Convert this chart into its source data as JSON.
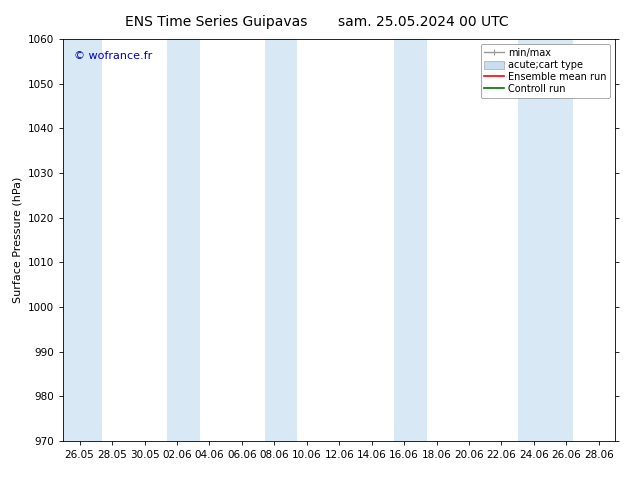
{
  "title_left": "ENS Time Series Guipavas",
  "title_right": "sam. 25.05.2024 00 UTC",
  "ylabel": "Surface Pressure (hPa)",
  "ylim": [
    970,
    1060
  ],
  "yticks": [
    970,
    980,
    990,
    1000,
    1010,
    1020,
    1030,
    1040,
    1050,
    1060
  ],
  "tick_labels": [
    "26.05",
    "28.05",
    "30.05",
    "02.06",
    "04.06",
    "06.06",
    "08.06",
    "10.06",
    "12.06",
    "14.06",
    "16.06",
    "18.06",
    "20.06",
    "22.06",
    "24.06",
    "26.06",
    "28.06"
  ],
  "watermark": "© wofrance.fr",
  "watermark_color": "#0000cc",
  "background_color": "#ffffff",
  "band_color": "#d8e8f5",
  "legend_entries": [
    "min/max",
    "acute;cart type",
    "Ensemble mean run",
    "Controll run"
  ],
  "legend_line_colors": [
    "#999999",
    "#c8ddf0",
    "#ff0000",
    "#008000"
  ],
  "font_size_title": 10,
  "font_size_axis": 8,
  "font_size_tick": 7.5,
  "font_size_legend": 7,
  "font_size_watermark": 8
}
